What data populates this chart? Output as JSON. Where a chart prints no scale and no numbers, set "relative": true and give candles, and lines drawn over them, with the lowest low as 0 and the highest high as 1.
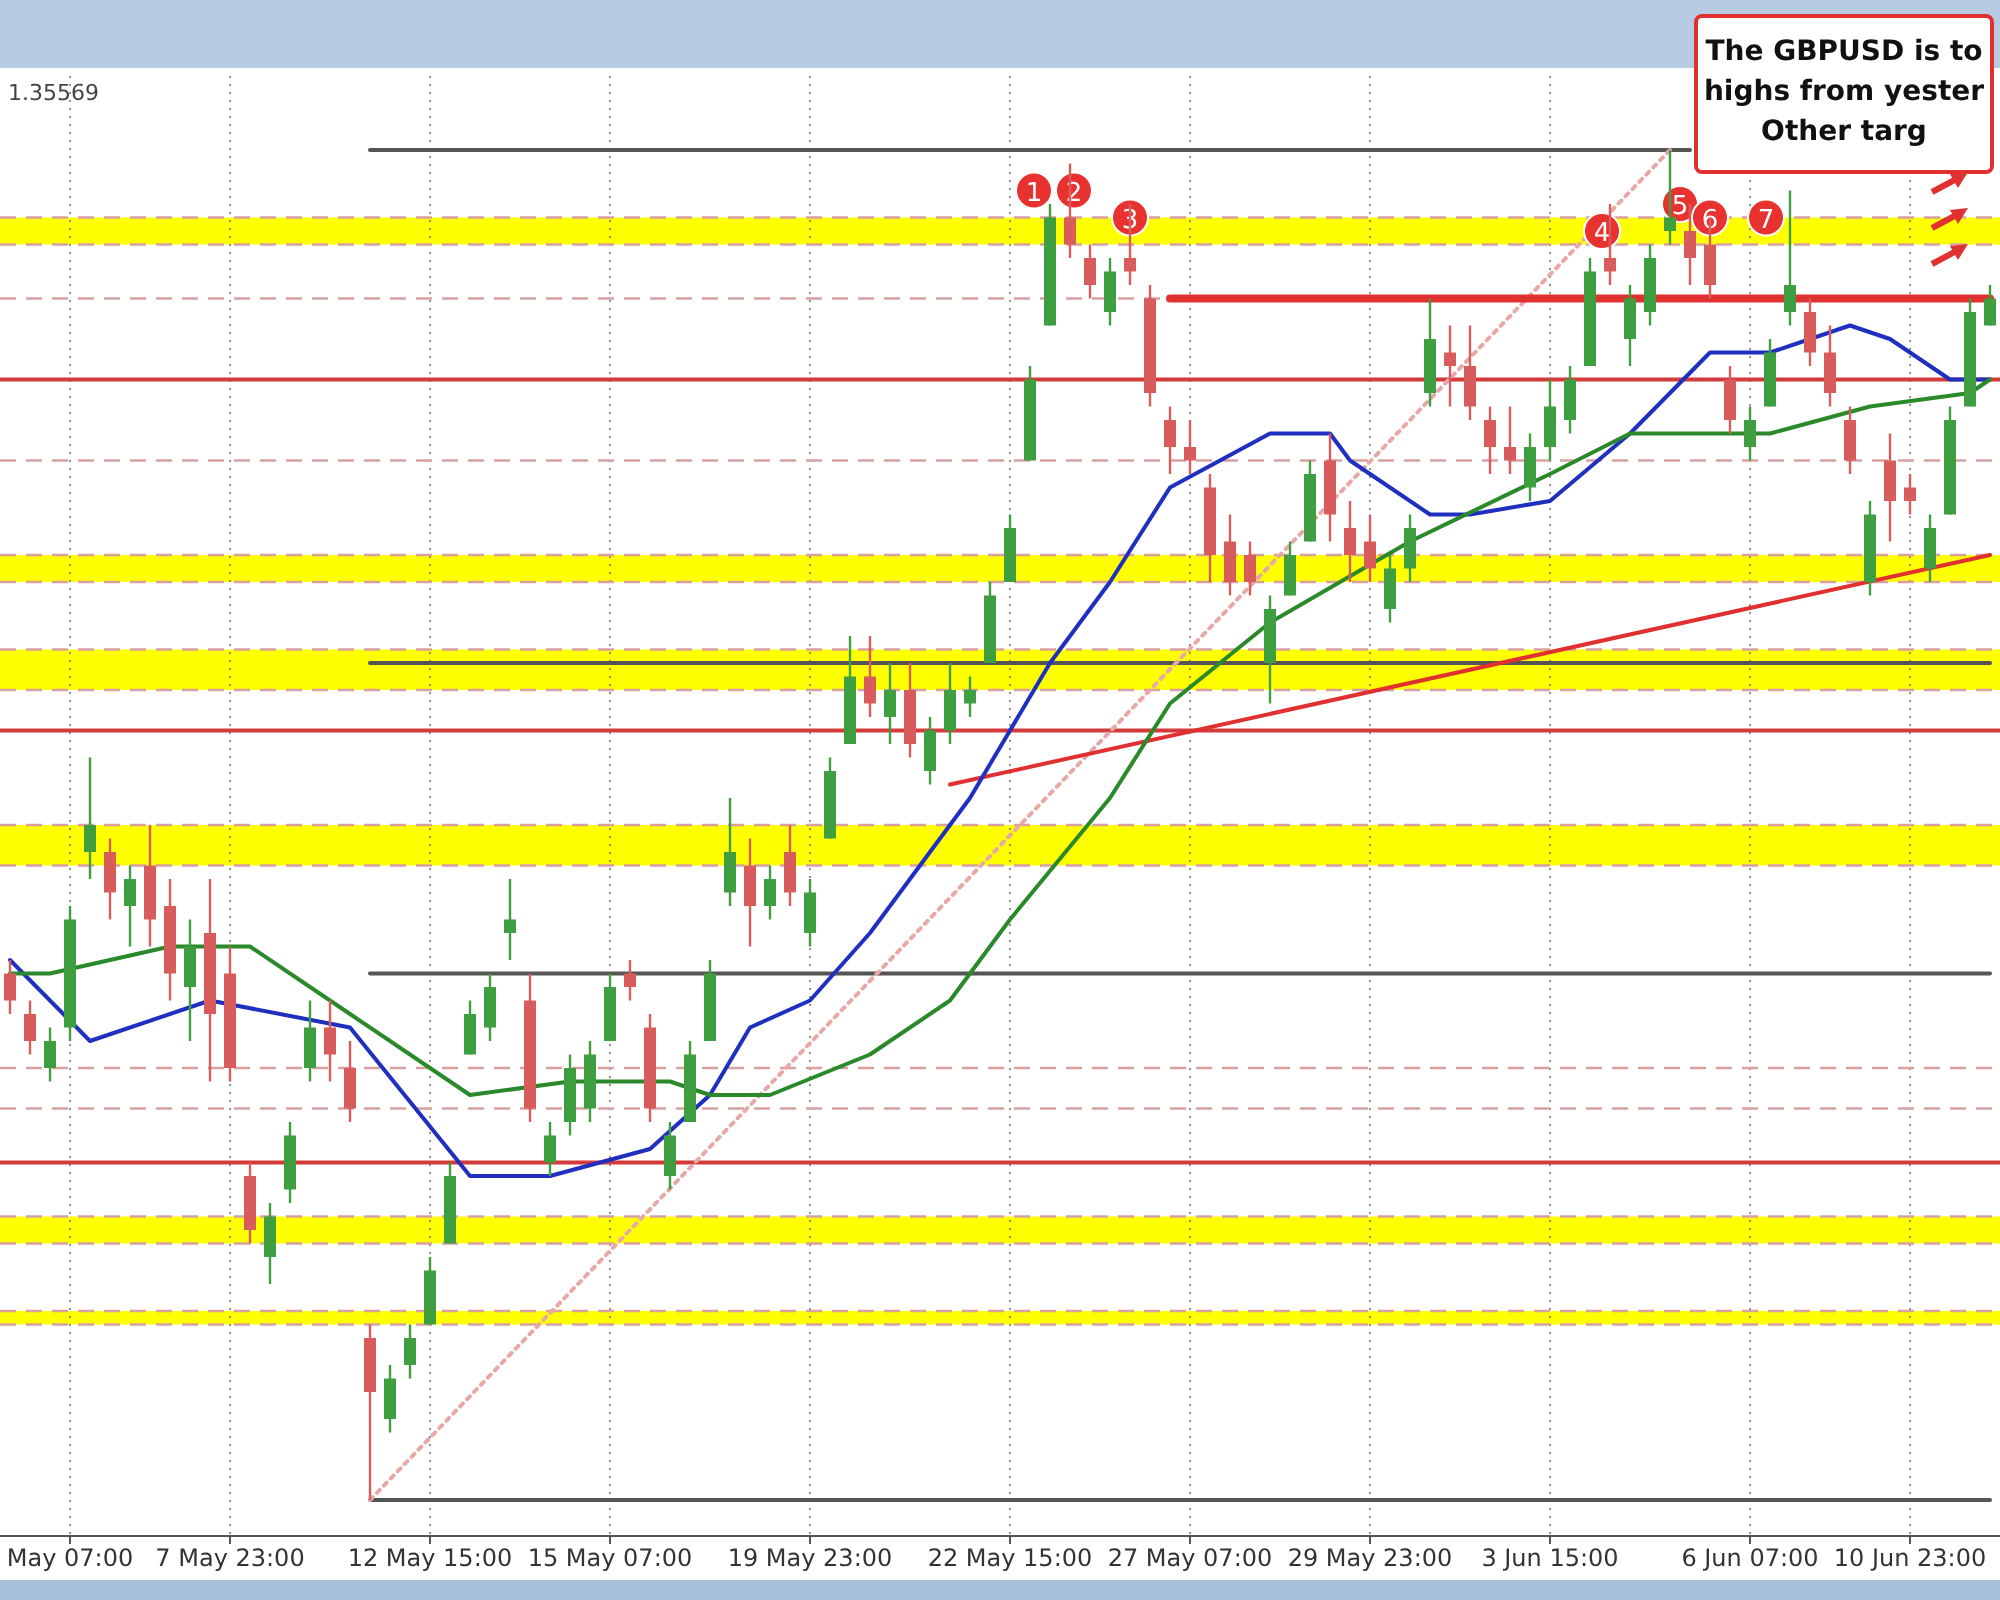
{
  "chart_data": {
    "type": "candlestick",
    "relative": true,
    "grid": "x",
    "tick_labels": "x",
    "categories": [
      null,
      null,
      null,
      "May 07:00",
      null,
      null,
      null,
      null,
      null,
      null,
      null,
      "7 May 23:00",
      null,
      null,
      null,
      null,
      null,
      null,
      null,
      null,
      null,
      "12 May 15:00",
      null,
      null,
      null,
      null,
      null,
      null,
      null,
      null,
      "15 May 07:00",
      null,
      null,
      null,
      null,
      null,
      null,
      null,
      null,
      null,
      "19 May 23:00",
      null,
      null,
      null,
      null,
      null,
      null,
      null,
      null,
      null,
      "22 May 15:00",
      null,
      null,
      null,
      null,
      null,
      null,
      null,
      null,
      "27 May 07:00",
      null,
      null,
      null,
      null,
      null,
      null,
      null,
      null,
      "29 May 23:00",
      null,
      null,
      null,
      null,
      null,
      null,
      null,
      null,
      "3 Jun 15:00",
      null,
      null,
      null,
      null,
      null,
      null,
      null,
      null,
      null,
      "6 Jun 07:00",
      null,
      null,
      null,
      null,
      null,
      null,
      null,
      "10 Jun 23:00",
      null,
      null,
      null,
      null
    ],
    "bands": [
      {
        "axis": "y",
        "from": 0.93,
        "to": 0.95,
        "color": "#ffff00"
      },
      {
        "axis": "y",
        "from": 0.68,
        "to": 0.7,
        "color": "#ffff00"
      },
      {
        "axis": "y",
        "from": 0.6,
        "to": 0.63,
        "color": "#ffff00"
      },
      {
        "axis": "y",
        "from": 0.47,
        "to": 0.5,
        "color": "#ffff00"
      },
      {
        "axis": "y",
        "from": 0.19,
        "to": 0.21,
        "color": "#ffff00"
      },
      {
        "axis": "y",
        "from": 0.13,
        "to": 0.14,
        "color": "#ffff00"
      }
    ],
    "ref_lines": [
      {
        "axis": "y",
        "value": 0.83,
        "color": "#d43a3a",
        "line_style": "solid"
      },
      {
        "axis": "y",
        "value": 0.57,
        "color": "#d43a3a",
        "line_style": "solid"
      },
      {
        "axis": "y",
        "value": 0.25,
        "color": "#d43a3a",
        "line_style": "solid"
      },
      {
        "axis": "y",
        "value": 0.95,
        "color": "#d9a0a0",
        "line_style": "dashed"
      },
      {
        "axis": "y",
        "value": 0.93,
        "color": "#d9a0a0",
        "line_style": "dashed"
      },
      {
        "axis": "y",
        "value": 0.89,
        "color": "#d9a0a0",
        "line_style": "dashed"
      },
      {
        "axis": "y",
        "value": 0.77,
        "color": "#d9a0a0",
        "line_style": "dashed"
      },
      {
        "axis": "y",
        "value": 0.7,
        "color": "#d9a0a0",
        "line_style": "dashed"
      },
      {
        "axis": "y",
        "value": 0.68,
        "color": "#d9a0a0",
        "line_style": "dashed"
      },
      {
        "axis": "y",
        "value": 0.63,
        "color": "#d9a0a0",
        "line_style": "dashed"
      },
      {
        "axis": "y",
        "value": 0.6,
        "color": "#d9a0a0",
        "line_style": "dashed"
      },
      {
        "axis": "y",
        "value": 0.5,
        "color": "#d9a0a0",
        "line_style": "dashed"
      },
      {
        "axis": "y",
        "value": 0.47,
        "color": "#d9a0a0",
        "line_style": "dashed"
      },
      {
        "axis": "y",
        "value": 0.32,
        "color": "#d9a0a0",
        "line_style": "dashed"
      },
      {
        "axis": "y",
        "value": 0.29,
        "color": "#d9a0a0",
        "line_style": "dashed"
      },
      {
        "axis": "y",
        "value": 0.21,
        "color": "#d9a0a0",
        "line_style": "dashed"
      },
      {
        "axis": "y",
        "value": 0.19,
        "color": "#d9a0a0",
        "line_style": "dashed"
      },
      {
        "axis": "y",
        "value": 0.14,
        "color": "#d9a0a0",
        "line_style": "dashed"
      },
      {
        "axis": "y",
        "value": 0.13,
        "color": "#d9a0a0",
        "line_style": "dashed"
      }
    ],
    "annotations": [
      "1.35569",
      "The GBPUSD is to\nhighs from yester\nOther targ",
      {
        "text": "1",
        "y": 0.97
      },
      {
        "text": "2",
        "y": 0.97
      },
      {
        "text": "3",
        "y": 0.95
      },
      {
        "text": "4",
        "y": 0.94
      },
      {
        "text": "5",
        "y": 0.96
      },
      {
        "text": "6",
        "y": 0.95
      },
      {
        "text": "7",
        "y": 0.95
      }
    ],
    "series": [
      {
        "type": "line",
        "color": "#555555",
        "line_style": "solid",
        "values": [
          null,
          null,
          null,
          null,
          null,
          null,
          null,
          null,
          null,
          null,
          null,
          null,
          null,
          null,
          null,
          null,
          null,
          null,
          1,
          null,
          null,
          null,
          null,
          null,
          null,
          null,
          null,
          null,
          null,
          null,
          null,
          null,
          null,
          null,
          null,
          null,
          null,
          null,
          null,
          null,
          null,
          null,
          null,
          null,
          null,
          null,
          null,
          null,
          null,
          null,
          null,
          null,
          null,
          null,
          null,
          null,
          null,
          null,
          null,
          null,
          null,
          null,
          null,
          null,
          null,
          null,
          null,
          null,
          null,
          null,
          null,
          null,
          null,
          null,
          null,
          null,
          null,
          null,
          null,
          null,
          null,
          null,
          null,
          null,
          1,
          null,
          null,
          null,
          null,
          null,
          null,
          null,
          null,
          null,
          null,
          null,
          null,
          null,
          null,
          null
        ]
      },
      {
        "type": "line",
        "color": "#555555",
        "line_style": "solid",
        "values": [
          null,
          null,
          null,
          null,
          null,
          null,
          null,
          null,
          null,
          null,
          null,
          null,
          null,
          null,
          null,
          null,
          null,
          null,
          0,
          null,
          null,
          null,
          null,
          null,
          null,
          null,
          null,
          null,
          null,
          null,
          null,
          null,
          null,
          null,
          null,
          null,
          null,
          null,
          null,
          null,
          null,
          null,
          null,
          null,
          null,
          null,
          null,
          null,
          null,
          null,
          null,
          null,
          null,
          null,
          null,
          null,
          null,
          null,
          null,
          null,
          null,
          null,
          null,
          null,
          null,
          null,
          null,
          null,
          null,
          null,
          null,
          null,
          null,
          null,
          null,
          null,
          null,
          null,
          null,
          null,
          null,
          null,
          null,
          null,
          null,
          null,
          null,
          null,
          null,
          null,
          null,
          null,
          null,
          null,
          null,
          null,
          null,
          null,
          null,
          0
        ]
      },
      {
        "type": "line",
        "color": "#555555",
        "line_style": "solid",
        "values": [
          null,
          null,
          null,
          null,
          null,
          null,
          null,
          null,
          null,
          null,
          null,
          null,
          null,
          null,
          null,
          null,
          null,
          null,
          0.62,
          null,
          null,
          null,
          null,
          null,
          null,
          null,
          null,
          null,
          null,
          null,
          null,
          null,
          null,
          null,
          null,
          null,
          null,
          null,
          null,
          null,
          null,
          null,
          null,
          null,
          null,
          null,
          null,
          null,
          null,
          null,
          null,
          null,
          null,
          null,
          null,
          null,
          null,
          null,
          null,
          null,
          null,
          null,
          null,
          null,
          null,
          null,
          null,
          null,
          null,
          null,
          null,
          null,
          null,
          null,
          null,
          null,
          null,
          null,
          null,
          null,
          null,
          null,
          null,
          null,
          null,
          null,
          null,
          null,
          null,
          null,
          null,
          null,
          null,
          null,
          null,
          null,
          null,
          null,
          null,
          0.62
        ]
      },
      {
        "type": "line",
        "color": "#555555",
        "line_style": "solid",
        "values": [
          null,
          null,
          null,
          null,
          null,
          null,
          null,
          null,
          null,
          null,
          null,
          null,
          null,
          null,
          null,
          null,
          null,
          null,
          0.39,
          null,
          null,
          null,
          null,
          null,
          null,
          null,
          null,
          null,
          null,
          null,
          null,
          null,
          null,
          null,
          null,
          null,
          null,
          null,
          null,
          null,
          null,
          null,
          null,
          null,
          null,
          null,
          null,
          null,
          null,
          null,
          null,
          null,
          null,
          null,
          null,
          null,
          null,
          null,
          null,
          null,
          null,
          null,
          null,
          null,
          null,
          null,
          null,
          null,
          null,
          null,
          null,
          null,
          null,
          null,
          null,
          null,
          null,
          null,
          null,
          null,
          null,
          null,
          null,
          null,
          null,
          null,
          null,
          null,
          null,
          null,
          null,
          null,
          null,
          null,
          null,
          null,
          null,
          null,
          null,
          0.39
        ]
      },
      {
        "type": "line",
        "color": "#e8a8a8",
        "line_style": "dotted",
        "values": [
          null,
          null,
          null,
          null,
          null,
          null,
          null,
          null,
          null,
          null,
          null,
          null,
          null,
          null,
          null,
          null,
          null,
          null,
          0,
          null,
          null,
          null,
          null,
          null,
          null,
          null,
          null,
          null,
          null,
          null,
          null,
          null,
          null,
          null,
          null,
          null,
          null,
          null,
          null,
          null,
          null,
          null,
          null,
          null,
          null,
          null,
          null,
          null,
          null,
          null,
          null,
          null,
          null,
          null,
          null,
          null,
          null,
          null,
          null,
          null,
          null,
          null,
          null,
          null,
          null,
          null,
          null,
          null,
          null,
          null,
          null,
          null,
          null,
          null,
          null,
          null,
          null,
          null,
          null,
          null,
          null,
          null,
          null,
          1,
          null,
          null,
          null,
          null,
          null,
          null,
          null,
          null,
          null,
          null,
          null,
          null,
          null,
          null,
          null,
          null
        ]
      },
      {
        "type": "line",
        "color": "#e03030",
        "line_style": "solid",
        "values": [
          null,
          null,
          null,
          null,
          null,
          null,
          null,
          null,
          null,
          null,
          null,
          null,
          null,
          null,
          null,
          null,
          null,
          null,
          null,
          null,
          null,
          null,
          null,
          null,
          null,
          null,
          null,
          null,
          null,
          null,
          null,
          null,
          null,
          null,
          null,
          null,
          null,
          null,
          null,
          null,
          null,
          null,
          null,
          null,
          null,
          null,
          null,
          0.53,
          null,
          null,
          null,
          null,
          null,
          null,
          null,
          null,
          null,
          null,
          null,
          null,
          null,
          null,
          null,
          null,
          null,
          null,
          null,
          null,
          null,
          null,
          null,
          null,
          null,
          null,
          null,
          null,
          null,
          null,
          null,
          null,
          null,
          null,
          null,
          null,
          null,
          null,
          null,
          null,
          null,
          null,
          null,
          null,
          null,
          null,
          null,
          null,
          null,
          null,
          null,
          0.7
        ]
      },
      {
        "type": "line",
        "color": "#e03030",
        "line_style": "solid",
        "values": [
          null,
          null,
          null,
          null,
          null,
          null,
          null,
          null,
          null,
          null,
          null,
          null,
          null,
          null,
          null,
          null,
          null,
          null,
          null,
          null,
          null,
          null,
          null,
          null,
          null,
          null,
          null,
          null,
          null,
          null,
          null,
          null,
          null,
          null,
          null,
          null,
          null,
          null,
          null,
          null,
          null,
          null,
          null,
          null,
          null,
          null,
          null,
          null,
          null,
          null,
          null,
          null,
          null,
          null,
          null,
          null,
          null,
          null,
          0.89,
          null,
          null,
          null,
          null,
          null,
          null,
          null,
          null,
          null,
          null,
          null,
          null,
          null,
          null,
          null,
          null,
          null,
          null,
          null,
          null,
          null,
          null,
          null,
          null,
          null,
          null,
          null,
          null,
          null,
          null,
          null,
          null,
          null,
          null,
          null,
          null,
          null,
          null,
          null,
          null,
          0.89
        ]
      },
      {
        "type": "line",
        "color": "#1f2fbf",
        "line_style": "solid",
        "values": [
          0.4,
          null,
          null,
          null,
          0.34,
          null,
          null,
          null,
          null,
          null,
          0.37,
          null,
          null,
          null,
          null,
          null,
          null,
          0.35,
          null,
          null,
          null,
          null,
          null,
          0.24,
          null,
          null,
          null,
          0.24,
          null,
          null,
          null,
          null,
          0.26,
          null,
          null,
          0.3,
          null,
          0.35,
          null,
          null,
          0.37,
          null,
          null,
          0.42,
          null,
          null,
          null,
          null,
          0.52,
          null,
          0.57,
          null,
          0.62,
          null,
          null,
          0.68,
          null,
          null,
          0.75,
          null,
          null,
          null,
          null,
          0.79,
          null,
          null,
          0.79,
          0.77,
          null,
          null,
          null,
          0.73,
          null,
          0.73,
          null,
          null,
          null,
          0.74,
          null,
          null,
          null,
          0.79,
          null,
          null,
          null,
          0.85,
          null,
          null,
          0.85,
          null,
          null,
          null,
          0.87,
          null,
          0.86,
          null,
          null,
          0.83,
          null,
          0.83
        ]
      },
      {
        "type": "line",
        "color": "#2a8a2a",
        "line_style": "solid",
        "values": [
          0.39,
          null,
          0.39,
          null,
          null,
          null,
          null,
          null,
          0.41,
          null,
          null,
          null,
          0.41,
          null,
          null,
          null,
          null,
          0.36,
          null,
          null,
          null,
          null,
          null,
          0.3,
          null,
          null,
          null,
          null,
          0.31,
          null,
          null,
          null,
          null,
          0.31,
          null,
          0.3,
          null,
          null,
          0.3,
          null,
          null,
          null,
          null,
          0.33,
          null,
          null,
          null,
          0.37,
          null,
          null,
          0.43,
          null,
          null,
          null,
          null,
          0.52,
          null,
          null,
          0.59,
          null,
          null,
          null,
          null,
          0.65,
          null,
          null,
          null,
          null,
          null,
          null,
          0.71,
          null,
          null,
          null,
          null,
          null,
          null,
          0.76,
          null,
          null,
          null,
          0.79,
          null,
          0.79,
          null,
          null,
          null,
          0.79,
          0.79,
          null,
          null,
          null,
          null,
          0.81,
          null,
          null,
          null,
          null,
          0.82,
          0.83
        ]
      },
      {
        "type": "candlestick",
        "ohlc": [
          [
            0.39,
            0.4,
            0.36,
            0.37
          ],
          [
            0.36,
            0.37,
            0.33,
            0.34
          ],
          [
            0.32,
            0.35,
            0.31,
            0.34
          ],
          [
            0.35,
            0.44,
            0.34,
            0.43
          ],
          [
            0.48,
            0.55,
            0.46,
            0.5
          ],
          [
            0.48,
            0.49,
            0.43,
            0.45
          ],
          [
            0.44,
            0.47,
            0.41,
            0.46
          ],
          [
            0.47,
            0.5,
            0.41,
            0.43
          ],
          [
            0.44,
            0.46,
            0.37,
            0.39
          ],
          [
            0.38,
            0.43,
            0.34,
            0.41
          ],
          [
            0.42,
            0.46,
            0.31,
            0.36
          ],
          [
            0.39,
            0.41,
            0.31,
            0.32
          ],
          [
            0.24,
            0.25,
            0.19,
            0.2
          ],
          [
            0.18,
            0.22,
            0.16,
            0.21
          ],
          [
            0.23,
            0.28,
            0.22,
            0.27
          ],
          [
            0.32,
            0.37,
            0.31,
            0.35
          ],
          [
            0.35,
            0.37,
            0.31,
            0.33
          ],
          [
            0.32,
            0.34,
            0.28,
            0.29
          ],
          [
            0.12,
            0.13,
            0,
            0.08
          ],
          [
            0.06,
            0.1,
            0.05,
            0.09
          ],
          [
            0.1,
            0.13,
            0.09,
            0.12
          ],
          [
            0.13,
            0.18,
            0.13,
            0.17
          ],
          [
            0.19,
            0.25,
            0.19,
            0.24
          ],
          [
            0.33,
            0.37,
            0.33,
            0.36
          ],
          [
            0.35,
            0.39,
            0.34,
            0.38
          ],
          [
            0.42,
            0.46,
            0.4,
            0.43
          ],
          [
            0.37,
            0.39,
            0.28,
            0.29
          ],
          [
            0.25,
            0.28,
            0.24,
            0.27
          ],
          [
            0.28,
            0.33,
            0.27,
            0.32
          ],
          [
            0.29,
            0.34,
            0.28,
            0.33
          ],
          [
            0.34,
            0.39,
            0.34,
            0.38
          ],
          [
            0.39,
            0.4,
            0.37,
            0.38
          ],
          [
            0.35,
            0.36,
            0.28,
            0.29
          ],
          [
            0.24,
            0.28,
            0.23,
            0.27
          ],
          [
            0.28,
            0.34,
            0.28,
            0.33
          ],
          [
            0.34,
            0.4,
            0.34,
            0.39
          ],
          [
            0.45,
            0.52,
            0.44,
            0.48
          ],
          [
            0.47,
            0.49,
            0.41,
            0.44
          ],
          [
            0.44,
            0.47,
            0.43,
            0.46
          ],
          [
            0.48,
            0.5,
            0.44,
            0.45
          ],
          [
            0.42,
            0.46,
            0.41,
            0.45
          ],
          [
            0.49,
            0.55,
            0.49,
            0.54
          ],
          [
            0.56,
            0.64,
            0.56,
            0.61
          ],
          [
            0.61,
            0.64,
            0.58,
            0.59
          ],
          [
            0.58,
            0.62,
            0.56,
            0.6
          ],
          [
            0.6,
            0.62,
            0.55,
            0.56
          ],
          [
            0.54,
            0.58,
            0.53,
            0.57
          ],
          [
            0.57,
            0.62,
            0.56,
            0.6
          ],
          [
            0.59,
            0.61,
            0.58,
            0.6
          ],
          [
            0.62,
            0.68,
            0.62,
            0.67
          ],
          [
            0.68,
            0.73,
            0.68,
            0.72
          ],
          [
            0.77,
            0.84,
            0.77,
            0.83
          ],
          [
            0.87,
            0.96,
            0.87,
            0.95
          ],
          [
            0.95,
            0.99,
            0.92,
            0.93
          ],
          [
            0.92,
            0.93,
            0.89,
            0.9
          ],
          [
            0.88,
            0.92,
            0.87,
            0.91
          ],
          [
            0.92,
            0.96,
            0.9,
            0.91
          ],
          [
            0.89,
            0.9,
            0.81,
            0.82
          ],
          [
            0.8,
            0.81,
            0.76,
            0.78
          ],
          [
            0.78,
            0.8,
            0.76,
            0.77
          ],
          [
            0.75,
            0.76,
            0.68,
            0.7
          ],
          [
            0.71,
            0.73,
            0.67,
            0.68
          ],
          [
            0.7,
            0.71,
            0.67,
            0.68
          ],
          [
            0.62,
            0.67,
            0.59,
            0.66
          ],
          [
            0.67,
            0.71,
            0.67,
            0.7
          ],
          [
            0.71,
            0.77,
            0.71,
            0.76
          ],
          [
            0.77,
            0.79,
            0.71,
            0.73
          ],
          [
            0.72,
            0.74,
            0.68,
            0.7
          ],
          [
            0.71,
            0.73,
            0.68,
            0.69
          ],
          [
            0.66,
            0.7,
            0.65,
            0.69
          ],
          [
            0.69,
            0.73,
            0.68,
            0.72
          ],
          [
            0.82,
            0.89,
            0.81,
            0.86
          ],
          [
            0.85,
            0.87,
            0.81,
            0.84
          ],
          [
            0.84,
            0.87,
            0.8,
            0.81
          ],
          [
            0.8,
            0.81,
            0.76,
            0.78
          ],
          [
            0.78,
            0.81,
            0.76,
            0.77
          ],
          [
            0.75,
            0.79,
            0.74,
            0.78
          ],
          [
            0.78,
            0.83,
            0.77,
            0.81
          ],
          [
            0.8,
            0.84,
            0.79,
            0.83
          ],
          [
            0.84,
            0.92,
            0.84,
            0.91
          ],
          [
            0.92,
            0.96,
            0.9,
            0.91
          ],
          [
            0.86,
            0.9,
            0.84,
            0.89
          ],
          [
            0.88,
            0.93,
            0.87,
            0.92
          ],
          [
            0.94,
            1,
            0.93,
            0.95
          ],
          [
            0.94,
            0.96,
            0.9,
            0.92
          ],
          [
            0.93,
            0.95,
            0.89,
            0.9
          ],
          [
            0.83,
            0.84,
            0.79,
            0.8
          ],
          [
            0.78,
            0.81,
            0.77,
            0.8
          ],
          [
            0.81,
            0.86,
            0.81,
            0.85
          ],
          [
            0.88,
            0.97,
            0.87,
            0.9
          ],
          [
            0.88,
            0.89,
            0.84,
            0.85
          ],
          [
            0.85,
            0.87,
            0.81,
            0.82
          ],
          [
            0.8,
            0.81,
            0.76,
            0.77
          ],
          [
            0.68,
            0.74,
            0.67,
            0.73
          ],
          [
            0.77,
            0.79,
            0.71,
            0.74
          ],
          [
            0.75,
            0.76,
            0.73,
            0.74
          ],
          [
            0.69,
            0.73,
            0.68,
            0.72
          ],
          [
            0.73,
            0.81,
            0.73,
            0.8
          ],
          [
            0.81,
            0.89,
            0.81,
            0.88
          ],
          [
            0.87,
            0.9,
            0.87,
            0.89
          ]
        ]
      }
    ]
  }
}
